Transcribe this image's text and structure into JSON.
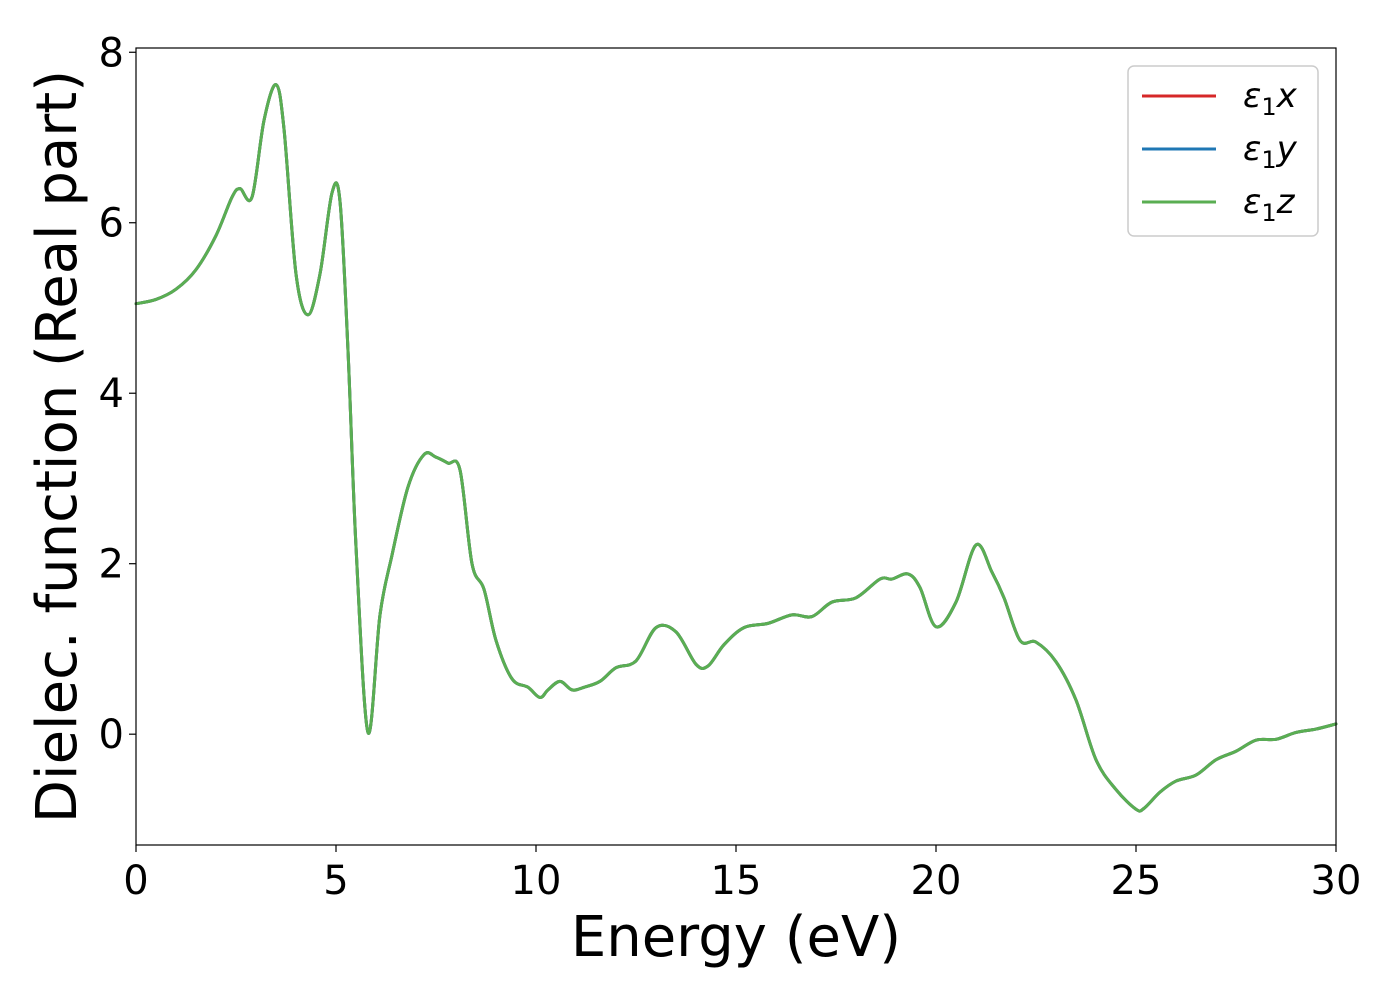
{
  "chart_data": {
    "type": "line",
    "xlabel": "Energy (eV)",
    "ylabel": "Dielec. function (Real part)",
    "xlim": [
      0,
      30
    ],
    "ylim": [
      -1.3,
      8.05
    ],
    "xticks": [
      0,
      5,
      10,
      15,
      20,
      25,
      30
    ],
    "yticks": [
      0,
      2,
      4,
      6,
      8
    ],
    "grid": false,
    "legend_position": "top-right",
    "series": [
      {
        "name": "ε1x",
        "legend_symbol": "ε",
        "legend_subscript": "1",
        "legend_suffix": "x",
        "color": "#d62728",
        "x": [
          0,
          0.5,
          1,
          1.5,
          2,
          2.4,
          2.6,
          2.9,
          3.2,
          3.5,
          3.7,
          4,
          4.3,
          4.6,
          4.9,
          5.1,
          5.3,
          5.5,
          5.8,
          6.1,
          6.4,
          6.8,
          7.2,
          7.5,
          7.8,
          8.1,
          8.4,
          8.7,
          9,
          9.4,
          9.8,
          10.1,
          10.3,
          10.6,
          10.9,
          11.2,
          11.6,
          12,
          12.5,
          13,
          13.5,
          14,
          14.3,
          14.7,
          15.2,
          15.8,
          16.4,
          16.9,
          17.4,
          18,
          18.6,
          18.9,
          19.3,
          19.6,
          20,
          20.5,
          21,
          21.4,
          21.7,
          22.1,
          22.5,
          23,
          23.5,
          24,
          24.5,
          25,
          25.2,
          25.6,
          26,
          26.5,
          27,
          27.5,
          28,
          28.5,
          29,
          29.5,
          30
        ],
        "y": [
          5.05,
          5.1,
          5.22,
          5.45,
          5.85,
          6.3,
          6.4,
          6.3,
          7.2,
          7.62,
          7.1,
          5.4,
          4.92,
          5.4,
          6.35,
          6.25,
          4.5,
          2.2,
          0.02,
          1.4,
          2.1,
          2.9,
          3.28,
          3.25,
          3.18,
          3.1,
          2.0,
          1.7,
          1.1,
          0.65,
          0.55,
          0.43,
          0.52,
          0.62,
          0.52,
          0.55,
          0.62,
          0.78,
          0.86,
          1.25,
          1.2,
          0.82,
          0.8,
          1.05,
          1.25,
          1.3,
          1.4,
          1.38,
          1.55,
          1.6,
          1.82,
          1.82,
          1.88,
          1.72,
          1.26,
          1.55,
          2.22,
          1.9,
          1.6,
          1.1,
          1.08,
          0.85,
          0.4,
          -0.3,
          -0.65,
          -0.88,
          -0.87,
          -0.68,
          -0.55,
          -0.48,
          -0.3,
          -0.2,
          -0.07,
          -0.06,
          0.02,
          0.06,
          0.12
        ]
      },
      {
        "name": "ε1y",
        "legend_symbol": "ε",
        "legend_subscript": "1",
        "legend_suffix": "y",
        "color": "#1f77b4",
        "x": [
          0,
          0.5,
          1,
          1.5,
          2,
          2.4,
          2.6,
          2.9,
          3.2,
          3.5,
          3.7,
          4,
          4.3,
          4.6,
          4.9,
          5.1,
          5.3,
          5.5,
          5.8,
          6.1,
          6.4,
          6.8,
          7.2,
          7.5,
          7.8,
          8.1,
          8.4,
          8.7,
          9,
          9.4,
          9.8,
          10.1,
          10.3,
          10.6,
          10.9,
          11.2,
          11.6,
          12,
          12.5,
          13,
          13.5,
          14,
          14.3,
          14.7,
          15.2,
          15.8,
          16.4,
          16.9,
          17.4,
          18,
          18.6,
          18.9,
          19.3,
          19.6,
          20,
          20.5,
          21,
          21.4,
          21.7,
          22.1,
          22.5,
          23,
          23.5,
          24,
          24.5,
          25,
          25.2,
          25.6,
          26,
          26.5,
          27,
          27.5,
          28,
          28.5,
          29,
          29.5,
          30
        ],
        "y": [
          5.05,
          5.1,
          5.22,
          5.45,
          5.85,
          6.3,
          6.4,
          6.3,
          7.2,
          7.62,
          7.1,
          5.4,
          4.92,
          5.4,
          6.35,
          6.25,
          4.5,
          2.2,
          0.02,
          1.4,
          2.1,
          2.9,
          3.28,
          3.25,
          3.18,
          3.1,
          2.0,
          1.7,
          1.1,
          0.65,
          0.55,
          0.43,
          0.52,
          0.62,
          0.52,
          0.55,
          0.62,
          0.78,
          0.86,
          1.25,
          1.2,
          0.82,
          0.8,
          1.05,
          1.25,
          1.3,
          1.4,
          1.38,
          1.55,
          1.6,
          1.82,
          1.82,
          1.88,
          1.72,
          1.26,
          1.55,
          2.22,
          1.9,
          1.6,
          1.1,
          1.08,
          0.85,
          0.4,
          -0.3,
          -0.65,
          -0.88,
          -0.87,
          -0.68,
          -0.55,
          -0.48,
          -0.3,
          -0.2,
          -0.07,
          -0.06,
          0.02,
          0.06,
          0.12
        ]
      },
      {
        "name": "ε1z",
        "legend_symbol": "ε",
        "legend_subscript": "1",
        "legend_suffix": "z",
        "color": "#5aae52",
        "x": [
          0,
          0.5,
          1,
          1.5,
          2,
          2.4,
          2.6,
          2.9,
          3.2,
          3.5,
          3.7,
          4,
          4.3,
          4.6,
          4.9,
          5.1,
          5.3,
          5.5,
          5.8,
          6.1,
          6.4,
          6.8,
          7.2,
          7.5,
          7.8,
          8.1,
          8.4,
          8.7,
          9,
          9.4,
          9.8,
          10.1,
          10.3,
          10.6,
          10.9,
          11.2,
          11.6,
          12,
          12.5,
          13,
          13.5,
          14,
          14.3,
          14.7,
          15.2,
          15.8,
          16.4,
          16.9,
          17.4,
          18,
          18.6,
          18.9,
          19.3,
          19.6,
          20,
          20.5,
          21,
          21.4,
          21.7,
          22.1,
          22.5,
          23,
          23.5,
          24,
          24.5,
          25,
          25.2,
          25.6,
          26,
          26.5,
          27,
          27.5,
          28,
          28.5,
          29,
          29.5,
          30
        ],
        "y": [
          5.05,
          5.1,
          5.22,
          5.45,
          5.85,
          6.3,
          6.4,
          6.3,
          7.2,
          7.62,
          7.1,
          5.4,
          4.92,
          5.4,
          6.35,
          6.25,
          4.5,
          2.2,
          0.02,
          1.4,
          2.1,
          2.9,
          3.28,
          3.25,
          3.18,
          3.1,
          2.0,
          1.7,
          1.1,
          0.65,
          0.55,
          0.43,
          0.52,
          0.62,
          0.52,
          0.55,
          0.62,
          0.78,
          0.86,
          1.25,
          1.2,
          0.82,
          0.8,
          1.05,
          1.25,
          1.3,
          1.4,
          1.38,
          1.55,
          1.6,
          1.82,
          1.82,
          1.88,
          1.72,
          1.26,
          1.55,
          2.22,
          1.9,
          1.6,
          1.1,
          1.08,
          0.85,
          0.4,
          -0.3,
          -0.65,
          -0.88,
          -0.87,
          -0.68,
          -0.55,
          -0.48,
          -0.3,
          -0.2,
          -0.07,
          -0.06,
          0.02,
          0.06,
          0.12
        ]
      }
    ]
  }
}
